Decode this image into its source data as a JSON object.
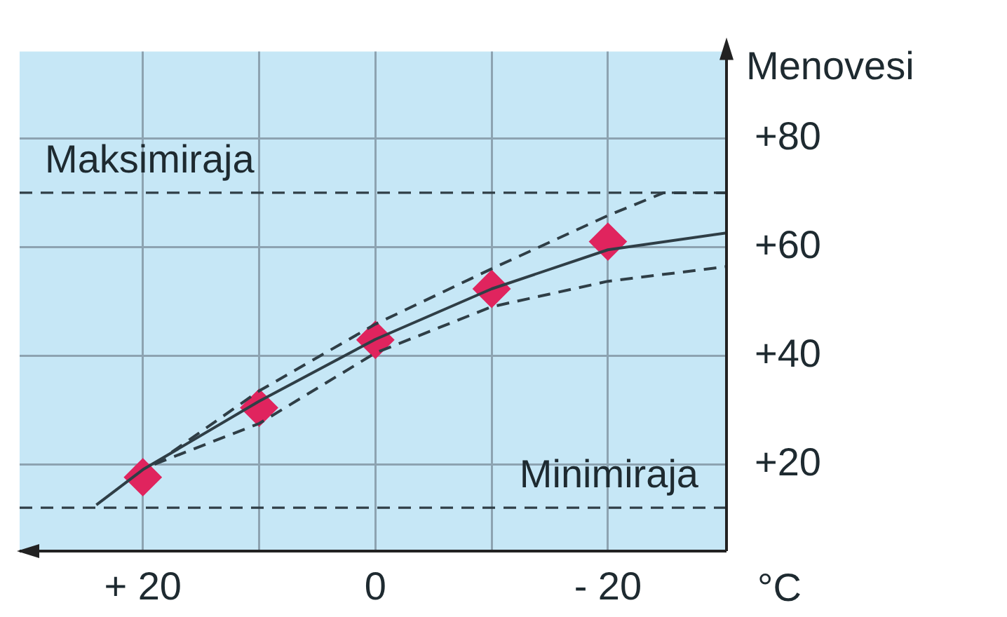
{
  "chart_data": {
    "type": "line",
    "ylabel": "Menovesi",
    "xlabel": "°C",
    "xlim": [
      30.6,
      -30.2
    ],
    "xticks": [
      {
        "value": 20,
        "label": "+ 20"
      },
      {
        "value": 10,
        "label": null
      },
      0,
      {
        "value": -10,
        "label": null
      },
      {
        "value": -20,
        "label": "- 20"
      }
    ],
    "ylim": [
      4,
      96
    ],
    "yticks": [
      {
        "value": 20,
        "label": "+20"
      },
      {
        "value": 40,
        "label": "+40"
      },
      {
        "value": 60,
        "label": "+60"
      },
      {
        "value": 80,
        "label": "+80"
      }
    ],
    "grid": true,
    "legend": false,
    "series": [
      {
        "color": "#2f3e46",
        "line_style": "solid",
        "marker": "none",
        "x": [
          24,
          20,
          10,
          0,
          -10,
          -20,
          -30.2
        ],
        "values": [
          12.5,
          19,
          31.6,
          43,
          52.3,
          59.5,
          62.6
        ]
      },
      {
        "color": "#2f3e46",
        "line_style": "dashed",
        "marker": "none",
        "x": [
          19,
          10,
          0,
          -10,
          -20,
          -24.8,
          -30.2
        ],
        "values": [
          20,
          33.5,
          45.8,
          56,
          65.8,
          70,
          70
        ]
      },
      {
        "color": "#2f3e46",
        "line_style": "dashed",
        "marker": "none",
        "x": [
          19,
          10,
          0,
          -10,
          -20,
          -30.2
        ],
        "values": [
          20,
          27.5,
          40.5,
          49,
          53.7,
          56.4
        ]
      },
      {
        "type": "scatter",
        "color": "#e0245e",
        "marker": "diamond",
        "x": [
          20,
          10,
          0,
          -10,
          -20
        ],
        "values": [
          17.6,
          30.4,
          42.9,
          52.3,
          61
        ]
      }
    ],
    "ref_lines": [
      {
        "axis": "y",
        "value": 70,
        "label": "Maksimiraja",
        "color": "#2f3e46",
        "line_style": "dashed"
      },
      {
        "axis": "y",
        "value": 12,
        "label": "Minimiraja",
        "color": "#2f3e46",
        "line_style": "dashed"
      }
    ]
  }
}
